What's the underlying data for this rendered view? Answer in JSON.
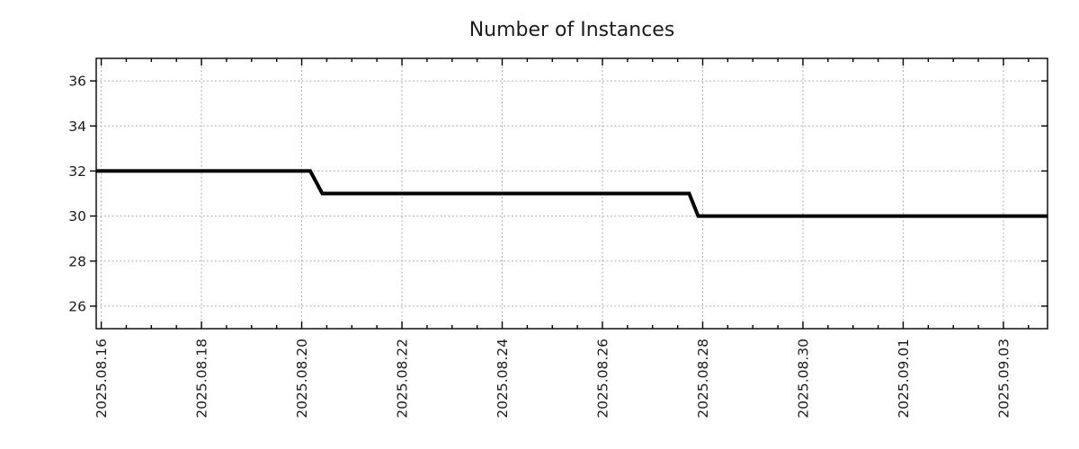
{
  "title": "Number of Instances",
  "colors": {
    "background": "#ffffff",
    "line": "#000000",
    "grid": "#a6a6a6",
    "axis": "#000000",
    "text": "#1c1c1c"
  },
  "chart_data": {
    "type": "line",
    "title": "Number of Instances",
    "xlabel": "",
    "ylabel": "",
    "legend_position": "none",
    "grid": "dotted gridlines at major ticks, both axes",
    "x_tick_labels": [
      "2025.08.16",
      "2025.08.18",
      "2025.08.20",
      "2025.08.22",
      "2025.08.24",
      "2025.08.26",
      "2025.08.28",
      "2025.08.30",
      "2025.09.01",
      "2025.09.03"
    ],
    "x_major_tick_days": [
      0,
      2,
      4,
      6,
      8,
      10,
      12,
      14,
      16,
      18
    ],
    "x_minor_step_days": 0.5,
    "xlim_days": [
      -0.1,
      18.88
    ],
    "y_ticks": [
      26,
      28,
      30,
      32,
      34,
      36
    ],
    "ylim": [
      25,
      37
    ],
    "series": [
      {
        "name": "Number of Instances",
        "points": [
          {
            "day": -0.1,
            "date": "2025.08.16",
            "value": 32
          },
          {
            "day": 4.17,
            "date": "2025.08.20 ~04:00",
            "value": 32
          },
          {
            "day": 4.41,
            "date": "2025.08.20 ~10:00",
            "value": 31
          },
          {
            "day": 11.73,
            "date": "2025.08.27 ~17:30",
            "value": 31
          },
          {
            "day": 11.91,
            "date": "2025.08.27 ~22:00",
            "value": 30
          },
          {
            "day": 18.88,
            "date": "2025.09.03",
            "value": 30
          }
        ]
      }
    ]
  }
}
